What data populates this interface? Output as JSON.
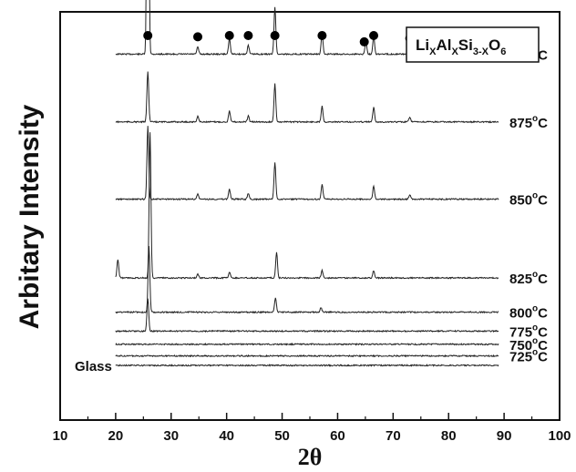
{
  "chart_data": {
    "type": "line",
    "title": "",
    "xlabel": "2θ",
    "ylabel": "Arbitary Intensity",
    "xlim": [
      10,
      100
    ],
    "x_ticks": [
      10,
      20,
      30,
      40,
      50,
      60,
      70,
      80,
      90,
      100
    ],
    "grid": false,
    "legend": {
      "position": "top-right",
      "base": "Li",
      "sub1": "X",
      "mid1": "Al",
      "sub2": "X",
      "mid2": "Si",
      "sub3": "3-X",
      "mid3": "O",
      "sub4": "6"
    },
    "peak_marker": {
      "symbol": "●",
      "positions_2theta": [
        25.8,
        34.8,
        40.5,
        43.9,
        48.7,
        57.2,
        64.8,
        66.5,
        73.0,
        79.2
      ]
    },
    "series": [
      {
        "name": "900°C",
        "label_main": "900",
        "label_deg": "o",
        "label_unit": "C",
        "baseline": 0.58,
        "peaks": [
          [
            25.8,
            5.95
          ],
          [
            34.8,
            0.1
          ],
          [
            40.5,
            0.22
          ],
          [
            43.9,
            0.12
          ],
          [
            48.7,
            0.65
          ],
          [
            57.2,
            0.28
          ],
          [
            65.1,
            0.18
          ],
          [
            66.5,
            0.25
          ],
          [
            73.0,
            0.08
          ],
          [
            79.3,
            0.1
          ]
        ]
      },
      {
        "name": "875°C",
        "label_main": "875",
        "label_deg": "o",
        "label_unit": "C",
        "baseline": 1.51,
        "peaks": [
          [
            25.8,
            0.7
          ],
          [
            34.8,
            0.08
          ],
          [
            40.5,
            0.15
          ],
          [
            43.9,
            0.08
          ],
          [
            48.7,
            0.52
          ],
          [
            57.2,
            0.22
          ],
          [
            66.5,
            0.2
          ],
          [
            73.0,
            0.07
          ]
        ]
      },
      {
        "name": "850°C",
        "label_main": "850",
        "label_deg": "o",
        "label_unit": "C",
        "baseline": 2.57,
        "peaks": [
          [
            25.8,
            1.0
          ],
          [
            34.8,
            0.07
          ],
          [
            40.5,
            0.14
          ],
          [
            43.9,
            0.08
          ],
          [
            48.7,
            0.5
          ],
          [
            57.2,
            0.2
          ],
          [
            66.5,
            0.18
          ],
          [
            73.0,
            0.06
          ]
        ]
      },
      {
        "name": "825°C",
        "label_main": "825",
        "label_deg": "o",
        "label_unit": "C",
        "baseline": 3.65,
        "peaks": [
          [
            20.4,
            0.25
          ],
          [
            26.2,
            2.0
          ],
          [
            34.8,
            0.05
          ],
          [
            40.5,
            0.08
          ],
          [
            49.0,
            0.35
          ],
          [
            57.2,
            0.1
          ],
          [
            66.5,
            0.1
          ]
        ]
      },
      {
        "name": "800°C",
        "label_main": "800",
        "label_deg": "o",
        "label_unit": "C",
        "baseline": 4.12,
        "peaks": [
          [
            26.0,
            0.9
          ],
          [
            48.8,
            0.2
          ],
          [
            57.0,
            0.06
          ]
        ]
      },
      {
        "name": "775°C",
        "label_main": "775",
        "label_deg": "o",
        "label_unit": "C",
        "baseline": 4.38,
        "peaks": [
          [
            25.8,
            0.45
          ]
        ]
      },
      {
        "name": "750°C",
        "label_main": "750",
        "label_deg": "o",
        "label_unit": "C",
        "baseline": 4.56,
        "peaks": []
      },
      {
        "name": "725°C",
        "label_main": "725",
        "label_deg": "o",
        "label_unit": "C",
        "baseline": 4.72,
        "peaks": []
      },
      {
        "name": "Glass",
        "label_main": "Glass",
        "label_deg": "",
        "label_unit": "",
        "baseline": 4.85,
        "peaks": []
      }
    ]
  }
}
